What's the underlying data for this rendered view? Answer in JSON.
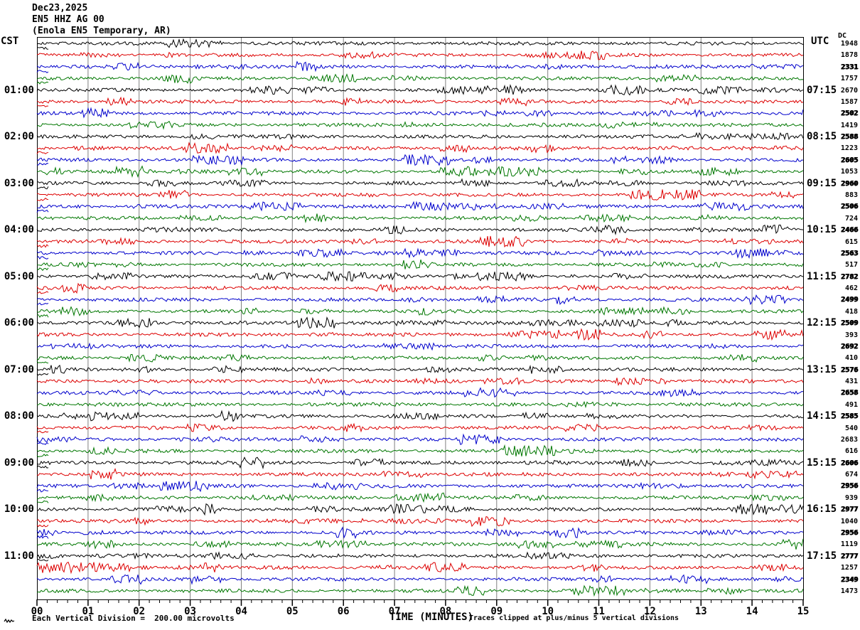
{
  "title": {
    "date": "Dec23,2025",
    "station": "EN5 HHZ AG 00",
    "location": "(Enola EN5 Temporary, AR)"
  },
  "left_axis": {
    "header": "CST",
    "hour_labels": [
      "01:00",
      "02:00",
      "03:00",
      "04:00",
      "05:00",
      "06:00",
      "07:00",
      "08:00",
      "09:00",
      "10:00",
      "11:00"
    ]
  },
  "right_axis": {
    "header": "UTC",
    "dc_header": "DC",
    "hour_labels": [
      "07:15",
      "08:15",
      "09:15",
      "10:15",
      "11:15",
      "12:15",
      "13:15",
      "14:15",
      "15:15",
      "16:15",
      "17:15"
    ],
    "dc_values": [
      {
        "value": "1948",
        "overstruck": false
      },
      {
        "value": "1878",
        "overstruck": false
      },
      {
        "value": "2331",
        "overstruck": true
      },
      {
        "value": "1757",
        "overstruck": false
      },
      {
        "value": "2670",
        "overstruck": false
      },
      {
        "value": "1587",
        "overstruck": false
      },
      {
        "value": "2502",
        "overstruck": true
      },
      {
        "value": "1419",
        "overstruck": false
      },
      {
        "value": "2588",
        "overstruck": true
      },
      {
        "value": "1223",
        "overstruck": false
      },
      {
        "value": "2605",
        "overstruck": true
      },
      {
        "value": "1053",
        "overstruck": false
      },
      {
        "value": "2960",
        "overstruck": true
      },
      {
        "value": "883",
        "overstruck": false
      },
      {
        "value": "2506",
        "overstruck": true
      },
      {
        "value": "724",
        "overstruck": false
      },
      {
        "value": "2466",
        "overstruck": true
      },
      {
        "value": "615",
        "overstruck": false
      },
      {
        "value": "2563",
        "overstruck": true
      },
      {
        "value": "517",
        "overstruck": false
      },
      {
        "value": "2782",
        "overstruck": true
      },
      {
        "value": "462",
        "overstruck": false
      },
      {
        "value": "2499",
        "overstruck": true
      },
      {
        "value": "418",
        "overstruck": false
      },
      {
        "value": "2509",
        "overstruck": true
      },
      {
        "value": "393",
        "overstruck": false
      },
      {
        "value": "2692",
        "overstruck": true
      },
      {
        "value": "410",
        "overstruck": false
      },
      {
        "value": "2576",
        "overstruck": true
      },
      {
        "value": "431",
        "overstruck": false
      },
      {
        "value": "2658",
        "overstruck": true
      },
      {
        "value": "491",
        "overstruck": false
      },
      {
        "value": "2585",
        "overstruck": true
      },
      {
        "value": "540",
        "overstruck": false
      },
      {
        "value": "2683",
        "overstruck": false
      },
      {
        "value": "616",
        "overstruck": false
      },
      {
        "value": "2606",
        "overstruck": true
      },
      {
        "value": "674",
        "overstruck": false
      },
      {
        "value": "2956",
        "overstruck": true
      },
      {
        "value": "939",
        "overstruck": false
      },
      {
        "value": "2977",
        "overstruck": true
      },
      {
        "value": "1040",
        "overstruck": false
      },
      {
        "value": "2956",
        "overstruck": true
      },
      {
        "value": "1119",
        "overstruck": false
      },
      {
        "value": "2777",
        "overstruck": true
      },
      {
        "value": "1257",
        "overstruck": false
      },
      {
        "value": "2349",
        "overstruck": true
      },
      {
        "value": "1473",
        "overstruck": false
      }
    ]
  },
  "x_axis": {
    "title": "TIME (MINUTES)",
    "tick_labels": [
      "00",
      "01",
      "02",
      "03",
      "04",
      "05",
      "06",
      "07",
      "08",
      "09",
      "10",
      "11",
      "12",
      "13",
      "14",
      "15"
    ]
  },
  "footer": {
    "scale_icon": "amplitude-squiggle-icon",
    "scale_note": "Each Vertical Division =  200.00 microvolts",
    "clip_note": "Traces clipped at plus/minus 5 vertical divisions"
  },
  "chart_data": {
    "type": "line",
    "title": "Helicorder seismogram — EN5 HHZ AG 00 (Enola EN5 Temporary, AR) Dec23,2025",
    "xlabel": "TIME (MINUTES)",
    "ylabel": "",
    "x_range": [
      0,
      15
    ],
    "x_tick_labels": [
      "00",
      "01",
      "02",
      "03",
      "04",
      "05",
      "06",
      "07",
      "08",
      "09",
      "10",
      "11",
      "12",
      "13",
      "14",
      "15"
    ],
    "grid": "vertical gridlines at each minute",
    "rows": 48,
    "minutes_per_row": 15,
    "rows_per_hour": 4,
    "trace_color_cycle": [
      "#000000",
      "#dd0000",
      "#0000cc",
      "#007700"
    ],
    "grid_color": "#808080",
    "cst_hour_labels": [
      "01:00",
      "02:00",
      "03:00",
      "04:00",
      "05:00",
      "06:00",
      "07:00",
      "08:00",
      "09:00",
      "10:00",
      "11:00"
    ],
    "utc_hour_labels": [
      "07:15",
      "08:15",
      "09:15",
      "10:15",
      "11:15",
      "12:15",
      "13:15",
      "14:15",
      "15:15",
      "16:15",
      "17:15"
    ],
    "dc_offset_values": [
      "1948",
      "1878",
      "2331",
      "1757",
      "2670",
      "1587",
      "2502",
      "1419",
      "2588",
      "1223",
      "2605",
      "1053",
      "2960",
      "883",
      "2506",
      "724",
      "2466",
      "615",
      "2563",
      "517",
      "2782",
      "462",
      "2499",
      "418",
      "2509",
      "393",
      "2692",
      "410",
      "2576",
      "431",
      "2658",
      "491",
      "2585",
      "540",
      "2683",
      "616",
      "2606",
      "674",
      "2956",
      "939",
      "2977",
      "1040",
      "2956",
      "1119",
      "2777",
      "1257",
      "2349",
      "1473"
    ],
    "amplitude_scale": "Each Vertical Division = 200.00 microvolts",
    "clipping": "Traces clipped at plus/minus 5 vertical divisions",
    "series_note": "48 quarter-hour seismic noise traces; waveform samples not individually readable at screenshot resolution"
  }
}
